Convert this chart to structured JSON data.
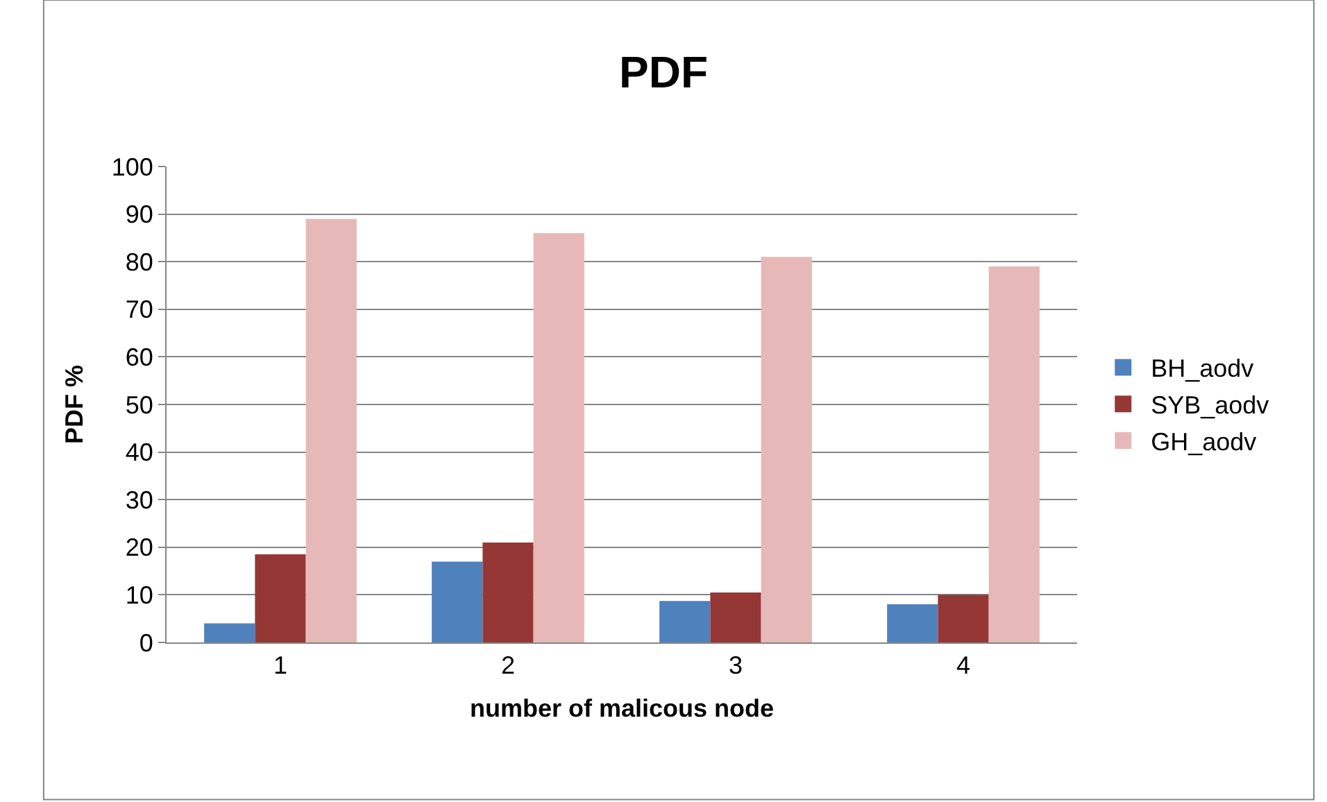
{
  "chart_data": {
    "type": "bar",
    "title": "PDF",
    "xlabel": "number of malicous node",
    "ylabel": "PDF %",
    "categories": [
      "1",
      "2",
      "3",
      "4"
    ],
    "series": [
      {
        "name": "BH_aodv",
        "color": "#4f81bd",
        "values": [
          4,
          17,
          8.7,
          8
        ]
      },
      {
        "name": "SYB_aodv",
        "color": "#953735",
        "values": [
          18.5,
          21,
          10.5,
          10
        ]
      },
      {
        "name": "GH_aodv",
        "color": "#e6b9b8",
        "values": [
          89,
          86,
          81,
          79
        ]
      }
    ],
    "ylim": [
      0,
      100
    ],
    "yticks": [
      0,
      10,
      20,
      30,
      40,
      50,
      60,
      70,
      80,
      90,
      100
    ],
    "grid": "y",
    "legend": "right"
  }
}
